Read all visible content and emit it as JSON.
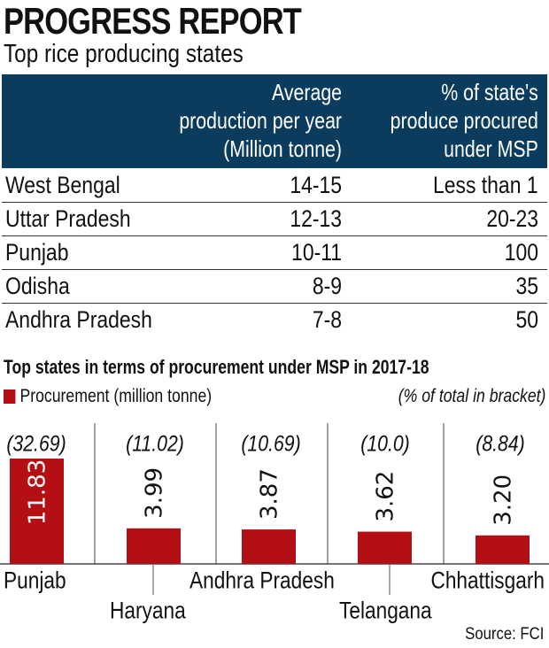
{
  "header": {
    "title": "PROGRESS REPORT",
    "subtitle": "Top  rice producing states"
  },
  "table": {
    "columns": [
      "",
      [
        "Average",
        "production per year",
        "(Million tonne)"
      ],
      [
        "% of state's",
        "produce procured",
        "under MSP"
      ]
    ],
    "rows": [
      [
        "West Bengal",
        "14-15",
        "Less than 1"
      ],
      [
        "Uttar Pradesh",
        "12-13",
        "20-23"
      ],
      [
        "Punjab",
        "10-11",
        "100"
      ],
      [
        "Odisha",
        "8-9",
        "35"
      ],
      [
        "Andhra Pradesh",
        "7-8",
        "50"
      ]
    ]
  },
  "chart_data": {
    "type": "bar",
    "title": "Top states in terms of procurement under MSP in  2017-18",
    "legend": [
      {
        "label": "Procurement (million tonne)",
        "color": "#b30f14"
      }
    ],
    "note": "(% of total in bracket)",
    "categories": [
      "Punjab",
      "Haryana",
      "Andhra Pradesh",
      "Telangana",
      "Chhattisgarh"
    ],
    "series": [
      {
        "name": "Procurement (million tonne)",
        "values": [
          11.83,
          3.99,
          3.87,
          3.62,
          3.2
        ],
        "labels": [
          "11.83",
          "3.99",
          "3.87",
          "3.62",
          "3.20"
        ]
      }
    ],
    "share_labels": [
      "(32.69)",
      "(11.02)",
      "(10.69)",
      "(10.0)",
      "(8.84)"
    ],
    "ylim": [
      0,
      11.83
    ],
    "grid": false,
    "bar_color": "#b30f14"
  },
  "footer": {
    "source": "Source: FCI"
  }
}
